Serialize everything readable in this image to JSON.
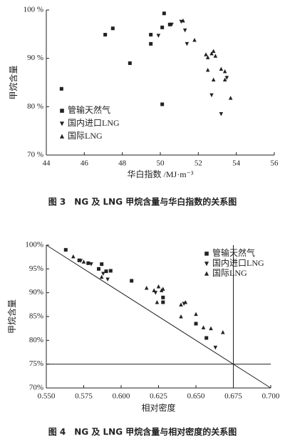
{
  "chart_data": [
    {
      "type": "scatter",
      "caption": "图 3　NG 及 LNG 甲烷含量与华白指数的关系图",
      "xlabel": "华白指数 /MJ·m⁻³",
      "ylabel": "甲烷含量",
      "xlim": [
        44,
        56
      ],
      "xticks": [
        44,
        46,
        48,
        50,
        52,
        54,
        56
      ],
      "ylim": [
        70,
        100
      ],
      "yticks": [
        {
          "value": 70,
          "label": "70 %"
        },
        {
          "value": 80,
          "label": "80 %"
        },
        {
          "value": 90,
          "label": "90 %"
        },
        {
          "value": 100,
          "label": "100 %"
        }
      ],
      "legend": "lower left",
      "series": [
        {
          "name": "管输天然气",
          "marker": "square",
          "color": "#222222",
          "x": [
            44.8,
            47.1,
            47.5,
            48.4,
            49.5,
            49.5,
            50.2,
            50.1,
            50.1,
            50.5
          ],
          "values": [
            83.7,
            94.9,
            96.2,
            89,
            93,
            94.9,
            99.3,
            96.4,
            80.5,
            97
          ]
        },
        {
          "name": "国内进口LNG",
          "marker": "triangle-down",
          "color": "#222222",
          "x": [
            49.9,
            50.6,
            51.1,
            51.3,
            51.4,
            52.7,
            53.2,
            53.5
          ],
          "values": [
            94.7,
            97,
            97.6,
            95.8,
            93,
            82.4,
            78.5,
            86
          ]
        },
        {
          "name": "国际LNG",
          "marker": "triangle-up",
          "color": "#222222",
          "x": [
            51.2,
            51.8,
            52.4,
            52.5,
            52.7,
            52.8,
            52.9,
            52.5,
            52.8,
            53.2,
            53.4,
            53.4,
            53.7
          ],
          "values": [
            97.8,
            93.8,
            90.8,
            90.2,
            91,
            91.5,
            90.5,
            87.6,
            85.6,
            87.8,
            87.3,
            85.6,
            81.8
          ]
        }
      ]
    },
    {
      "type": "scatter",
      "caption": "图 4　NG 及 LNG 甲烷含量与相对密度的关系图",
      "xlabel": "相对密度",
      "ylabel": "甲烷含量",
      "xlim": [
        0.55,
        0.7
      ],
      "xticks": [
        {
          "value": 0.55,
          "label": "0.550"
        },
        {
          "value": 0.575,
          "label": "0.575"
        },
        {
          "value": 0.6,
          "label": "0.600"
        },
        {
          "value": 0.625,
          "label": "0.625"
        },
        {
          "value": 0.65,
          "label": "0.650"
        },
        {
          "value": 0.675,
          "label": "0.675"
        },
        {
          "value": 0.7,
          "label": "0.700"
        }
      ],
      "ylim": [
        70,
        100
      ],
      "yticks": [
        {
          "value": 70,
          "label": "70%"
        },
        {
          "value": 75,
          "label": "75%"
        },
        {
          "value": 80,
          "label": "80%"
        },
        {
          "value": 85,
          "label": "85%"
        },
        {
          "value": 90,
          "label": "90%"
        },
        {
          "value": 95,
          "label": "95%"
        },
        {
          "value": 100,
          "label": "100%"
        }
      ],
      "legend": "upper right",
      "ref_lines": [
        {
          "x": [
            0.55,
            0.7
          ],
          "y": [
            100,
            70
          ]
        },
        {
          "x": [
            0.675,
            0.675
          ],
          "y": [
            70,
            100
          ]
        },
        {
          "x": [
            0.55,
            0.7
          ],
          "y": [
            75,
            75
          ]
        }
      ],
      "series": [
        {
          "name": "管输天然气",
          "marker": "square",
          "color": "#222222",
          "x": [
            0.563,
            0.572,
            0.578,
            0.585,
            0.587,
            0.59,
            0.593,
            0.607,
            0.628,
            0.628,
            0.65,
            0.657
          ],
          "values": [
            99,
            96.8,
            96.2,
            95,
            96,
            94.5,
            94.6,
            92.5,
            89,
            88,
            83.5,
            80.5
          ]
        },
        {
          "name": "国内进口LNG",
          "marker": "triangle-down",
          "color": "#222222",
          "x": [
            0.573,
            0.58,
            0.588,
            0.591,
            0.623,
            0.642,
            0.663
          ],
          "values": [
            96.7,
            96,
            94,
            92.8,
            90,
            87.7,
            78.5
          ]
        },
        {
          "name": "国际LNG",
          "marker": "triangle-up",
          "color": "#222222",
          "x": [
            0.568,
            0.575,
            0.587,
            0.617,
            0.622,
            0.625,
            0.627,
            0.628,
            0.624,
            0.64,
            0.643,
            0.64,
            0.65,
            0.655,
            0.66,
            0.668
          ],
          "values": [
            97.6,
            96.5,
            93.3,
            91,
            90.5,
            91.3,
            90.5,
            90.8,
            88,
            87.5,
            88,
            85,
            85.5,
            82.7,
            82.5,
            81.7
          ]
        }
      ]
    }
  ]
}
